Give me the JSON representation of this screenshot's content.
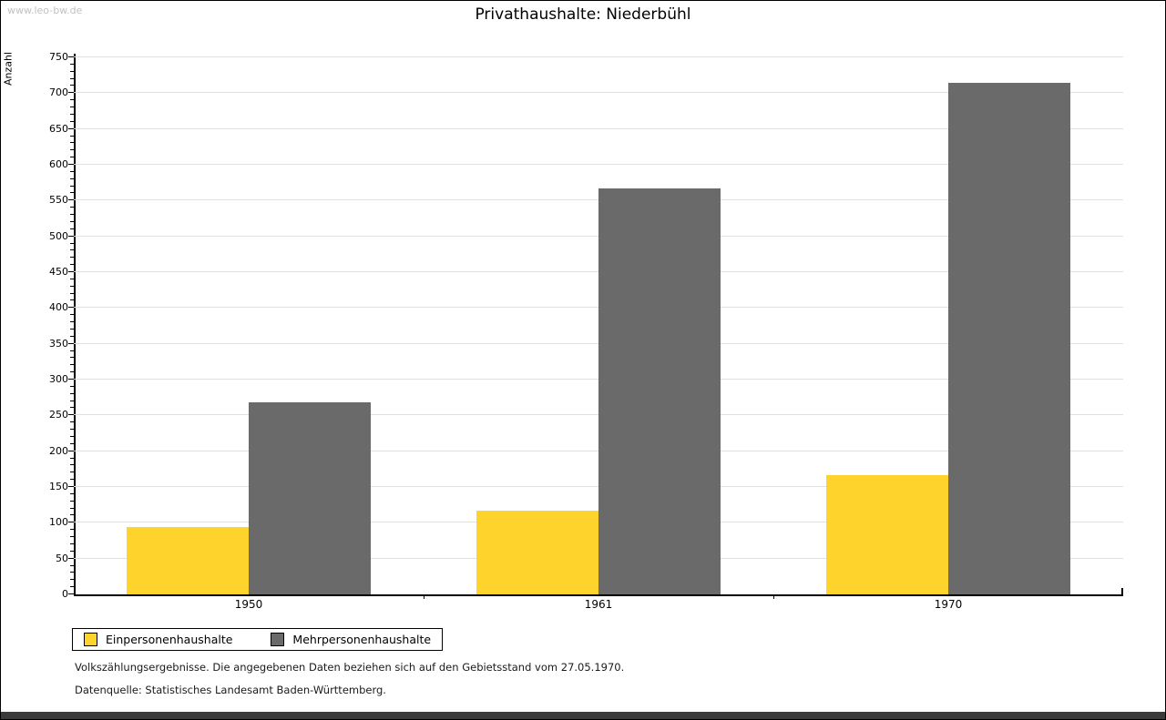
{
  "watermark": "www.leo-bw.de",
  "title": "Privathaushalte: Niederbühl",
  "chart_data": {
    "type": "bar",
    "title": "Privathaushalte: Niederbühl",
    "xlabel": "",
    "ylabel": "Anzahl",
    "categories": [
      "1950",
      "1961",
      "1970"
    ],
    "series": [
      {
        "name": "Einpersonenhaushalte",
        "color": "#fdd32c",
        "values": [
          94,
          117,
          166
        ]
      },
      {
        "name": "Mehrpersonenhaushalte",
        "color": "#6a6a6a",
        "values": [
          268,
          567,
          715
        ]
      }
    ],
    "ylim": [
      0,
      750
    ],
    "ytick_step": 50,
    "yminor_step": 10,
    "grid": true,
    "gridline_color": "#e0e0e0",
    "legend_position": "bottom-left"
  },
  "footer": {
    "line1": "Volkszählungsergebnisse. Die angegebenen Daten beziehen sich auf den Gebietsstand vom 27.05.1970.",
    "line2": "Datenquelle: Statistisches Landesamt Baden-Württemberg."
  }
}
